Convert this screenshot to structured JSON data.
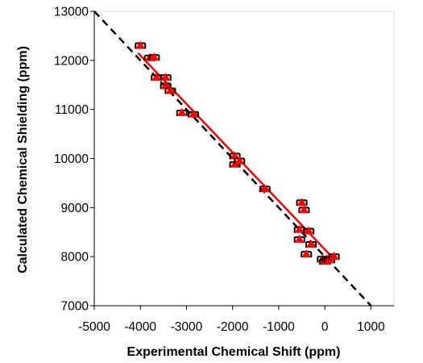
{
  "chart_data": {
    "type": "scatter",
    "title": "",
    "xlabel": "Experimental Chemical Shift (ppm)",
    "ylabel": "Calculated Chemical Shielding (ppm)",
    "xlim": [
      -5000,
      1500
    ],
    "ylim": [
      7000,
      13000
    ],
    "xticks": [
      -5000,
      -4000,
      -3000,
      -2000,
      -1000,
      0,
      1000
    ],
    "yticks": [
      7000,
      8000,
      9000,
      10000,
      11000,
      12000,
      13000
    ],
    "xtick_labels": [
      "-5000",
      "-4000",
      "-3000",
      "-2000",
      "-1000",
      "0",
      "1000"
    ],
    "ytick_labels": [
      "7000",
      "8000",
      "9000",
      "10000",
      "11000",
      "12000",
      "13000"
    ],
    "grid": false,
    "legend": "none",
    "colors": {
      "points": "#ff0000",
      "fit_line": "#ff0000",
      "reference_line": "#000000",
      "error_bars": "#000000"
    },
    "series": [
      {
        "marker": "triangle",
        "with_error_bars": true,
        "points": [
          {
            "x": -4000,
            "y": 12300
          },
          {
            "x": -3800,
            "y": 12050
          },
          {
            "x": -3700,
            "y": 12060
          },
          {
            "x": -3650,
            "y": 11650
          },
          {
            "x": -3450,
            "y": 11650
          },
          {
            "x": -3450,
            "y": 11480
          },
          {
            "x": -3350,
            "y": 11380
          },
          {
            "x": -3100,
            "y": 10930
          },
          {
            "x": -2850,
            "y": 10900
          },
          {
            "x": -1950,
            "y": 10050
          },
          {
            "x": -1950,
            "y": 9880
          },
          {
            "x": -1850,
            "y": 9950
          },
          {
            "x": -1300,
            "y": 9380
          },
          {
            "x": -500,
            "y": 9100
          },
          {
            "x": -450,
            "y": 8950
          },
          {
            "x": -550,
            "y": 8550
          },
          {
            "x": -350,
            "y": 8520
          },
          {
            "x": -550,
            "y": 8350
          },
          {
            "x": -300,
            "y": 8250
          },
          {
            "x": -400,
            "y": 8050
          },
          {
            "x": -50,
            "y": 7950
          },
          {
            "x": 0,
            "y": 7900
          },
          {
            "x": 50,
            "y": 7950
          },
          {
            "x": 100,
            "y": 7930
          },
          {
            "x": 200,
            "y": 8000
          }
        ]
      }
    ],
    "fit_line": {
      "style": "solid",
      "x": [
        -4050,
        200
      ],
      "y": [
        12150,
        7950
      ]
    },
    "reference_line": {
      "style": "dashed",
      "x": [
        -5000,
        1000
      ],
      "y": [
        13000,
        7000
      ]
    }
  }
}
